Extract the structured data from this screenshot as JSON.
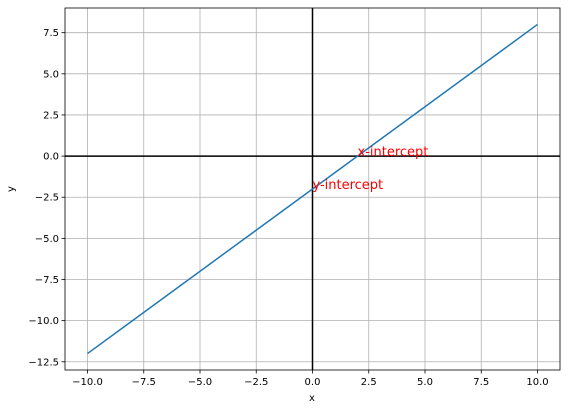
{
  "chart_data": {
    "type": "line",
    "title": "",
    "xlabel": "x",
    "ylabel": "y",
    "xlim": [
      -11,
      11
    ],
    "ylim": [
      -13,
      9
    ],
    "grid": true,
    "legend": "none",
    "x_ticks": [
      -10.0,
      -7.5,
      -5.0,
      -2.5,
      0.0,
      2.5,
      5.0,
      7.5,
      10.0
    ],
    "x_tick_labels": [
      "−10.0",
      "−7.5",
      "−5.0",
      "−2.5",
      "0.0",
      "2.5",
      "5.0",
      "7.5",
      "10.0"
    ],
    "y_ticks": [
      7.5,
      5.0,
      2.5,
      0.0,
      -2.5,
      -5.0,
      -7.5,
      -10.0,
      -12.5
    ],
    "y_tick_labels": [
      "7.5",
      "5.0",
      "2.5",
      "0.0",
      "−2.5",
      "−5.0",
      "−7.5",
      "−10.0",
      "−12.5"
    ],
    "series": [
      {
        "x": [
          -10,
          10
        ],
        "y": [
          -12,
          8
        ],
        "color": "#1f77b4"
      }
    ],
    "reference_lines": [
      {
        "orientation": "horizontal",
        "value": 0,
        "color": "#000000"
      },
      {
        "orientation": "vertical",
        "value": 0,
        "color": "#000000"
      }
    ],
    "annotations": [
      {
        "text": "x-intercept",
        "x": 2,
        "y": 0,
        "color": "#ff0000"
      },
      {
        "text": "y-intercept",
        "x": 0,
        "y": -2,
        "color": "#ff0000"
      }
    ]
  }
}
